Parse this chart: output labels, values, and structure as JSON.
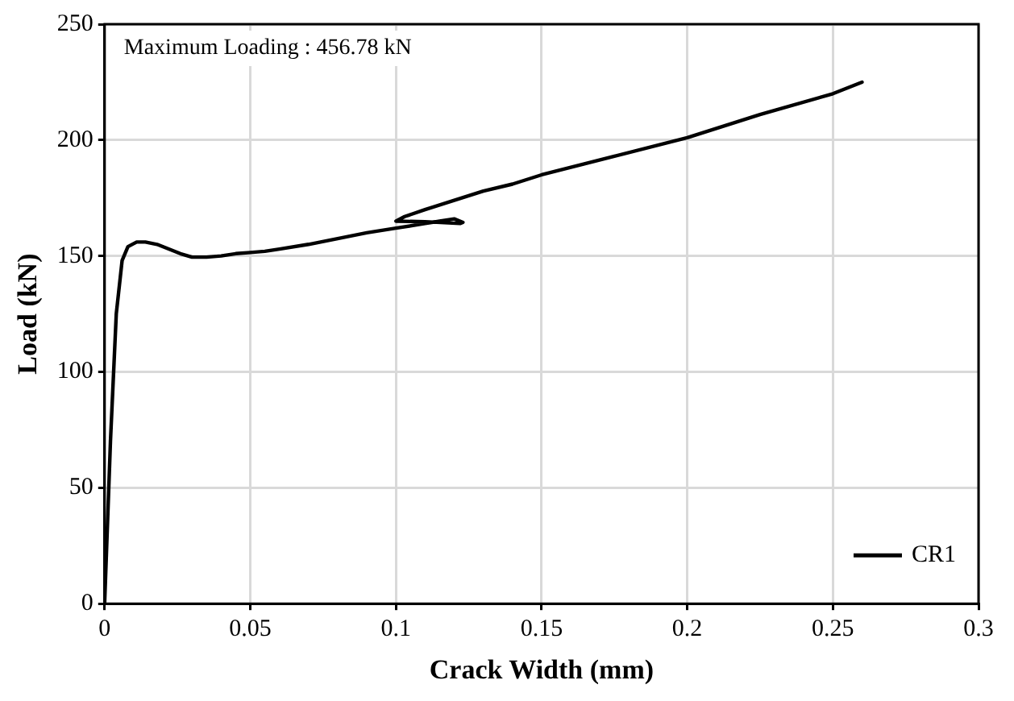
{
  "chart_data": {
    "type": "line",
    "xlabel": "Crack Width (mm)",
    "ylabel": "Load (kN)",
    "annotations": [
      "Maximum Loading : 456.78 kN"
    ],
    "xlim": [
      0,
      0.3
    ],
    "xticks": [
      0,
      0.05,
      0.1,
      0.15,
      0.2,
      0.25,
      0.3
    ],
    "ylim": [
      0,
      250
    ],
    "yticks": [
      0,
      50,
      100,
      150,
      200,
      250
    ],
    "grid": true,
    "legend": "bottom right",
    "marker": "none",
    "line_style": "solid",
    "series": [
      {
        "name": "CR1",
        "color": "#000000",
        "x": [
          0,
          0.002,
          0.004,
          0.006,
          0.008,
          0.011,
          0.014,
          0.018,
          0.022,
          0.026,
          0.03,
          0.035,
          0.04,
          0.045,
          0.05,
          0.055,
          0.06,
          0.07,
          0.08,
          0.09,
          0.1,
          0.11,
          0.115,
          0.12,
          0.123,
          0.122,
          0.11,
          0.1,
          0.103,
          0.11,
          0.12,
          0.13,
          0.14,
          0.15,
          0.175,
          0.2,
          0.225,
          0.25,
          0.26
        ],
        "values": [
          0,
          70,
          125,
          148,
          154,
          156,
          156,
          155,
          153,
          151,
          149.5,
          149.5,
          150,
          151,
          151.5,
          152,
          153,
          155,
          157.5,
          160,
          162,
          164,
          165,
          166,
          164.5,
          164,
          164.8,
          165,
          167,
          170,
          174,
          178,
          181,
          185,
          193,
          201,
          211,
          220,
          225
        ]
      }
    ]
  }
}
